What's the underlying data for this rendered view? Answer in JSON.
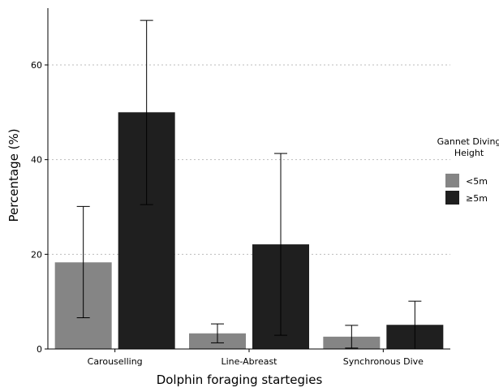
{
  "chart_data": {
    "type": "bar",
    "title": "",
    "xlabel": "Dolphin foraging startegies",
    "ylabel": "Percentage (%)",
    "ylim": [
      0,
      72
    ],
    "yticks": [
      0,
      20,
      40,
      60
    ],
    "grid": "horizontal dotted",
    "categories": [
      "Carouselling",
      "Line-Abreast",
      "Synchronous Dive"
    ],
    "legend": {
      "title_lines": [
        "Gannet Diving",
        "Height"
      ],
      "placement": "right"
    },
    "series": [
      {
        "name": "<5m",
        "color": "#858585",
        "values": [
          18.3,
          3.3,
          2.6
        ],
        "error_low": [
          6.6,
          1.3,
          0.2
        ],
        "error_high": [
          30.1,
          5.3,
          5.0
        ]
      },
      {
        "name": "≥5m",
        "color": "#1f1f1f",
        "values": [
          50.0,
          22.1,
          5.1
        ],
        "error_low": [
          30.5,
          2.9,
          0.0
        ],
        "error_high": [
          69.4,
          41.3,
          10.1
        ]
      }
    ]
  }
}
